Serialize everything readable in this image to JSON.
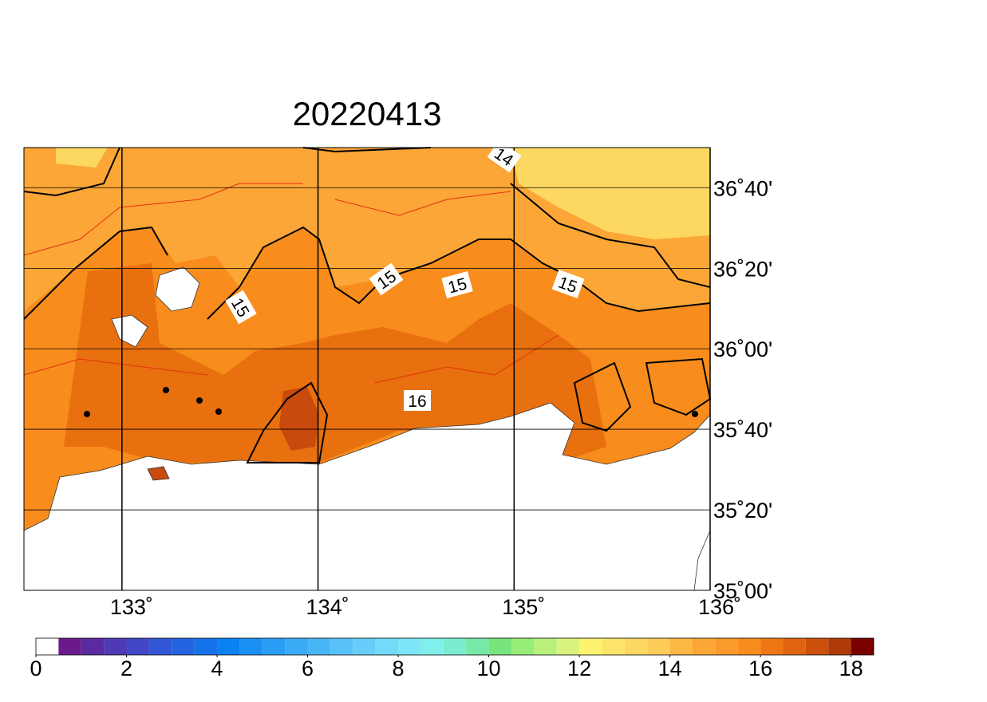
{
  "chart_data": {
    "type": "map",
    "title": "20220413",
    "xlim": [
      132.5,
      136
    ],
    "ylim": [
      35,
      36.833
    ],
    "xticks": [
      {
        "value": 133,
        "label": "133˚"
      },
      {
        "value": 134,
        "label": "134˚"
      },
      {
        "value": 135,
        "label": "135˚"
      },
      {
        "value": 136,
        "label": "136˚"
      }
    ],
    "yticks": [
      {
        "value": 35,
        "label": "35˚00'"
      },
      {
        "value": 35.333,
        "label": "35˚20'"
      },
      {
        "value": 35.667,
        "label": "35˚40'"
      },
      {
        "value": 36,
        "label": "36˚00'"
      },
      {
        "value": 36.333,
        "label": "36˚20'"
      },
      {
        "value": 36.667,
        "label": "36˚40'"
      }
    ],
    "contour_labels": [
      14,
      15,
      15,
      15,
      15,
      16
    ],
    "colorbar": {
      "clim": [
        0,
        18.5
      ],
      "ticks": [
        0,
        2,
        4,
        6,
        8,
        10,
        12,
        14,
        16,
        18
      ],
      "colors": [
        "#ffffff",
        "#6a1a8a",
        "#5c2aa0",
        "#4e3ab4",
        "#4048c6",
        "#3256d4",
        "#2464e0",
        "#1672ea",
        "#0a82f2",
        "#1890f4",
        "#2a9ef4",
        "#3aaaf4",
        "#48b6f6",
        "#58c2f8",
        "#66cef8",
        "#74dafa",
        "#7ee6f6",
        "#80f0ec",
        "#7cecd0",
        "#76e8a8",
        "#78e47c",
        "#98ec78",
        "#b8f07a",
        "#d8f47c",
        "#fcf470",
        "#fde468",
        "#fdd860",
        "#fdcc58",
        "#fcb844",
        "#fba636",
        "#fa9a2a",
        "#f88c1c",
        "#ee7614",
        "#e06410",
        "#cc500c",
        "#b03a08",
        "#7a0000"
      ]
    }
  }
}
